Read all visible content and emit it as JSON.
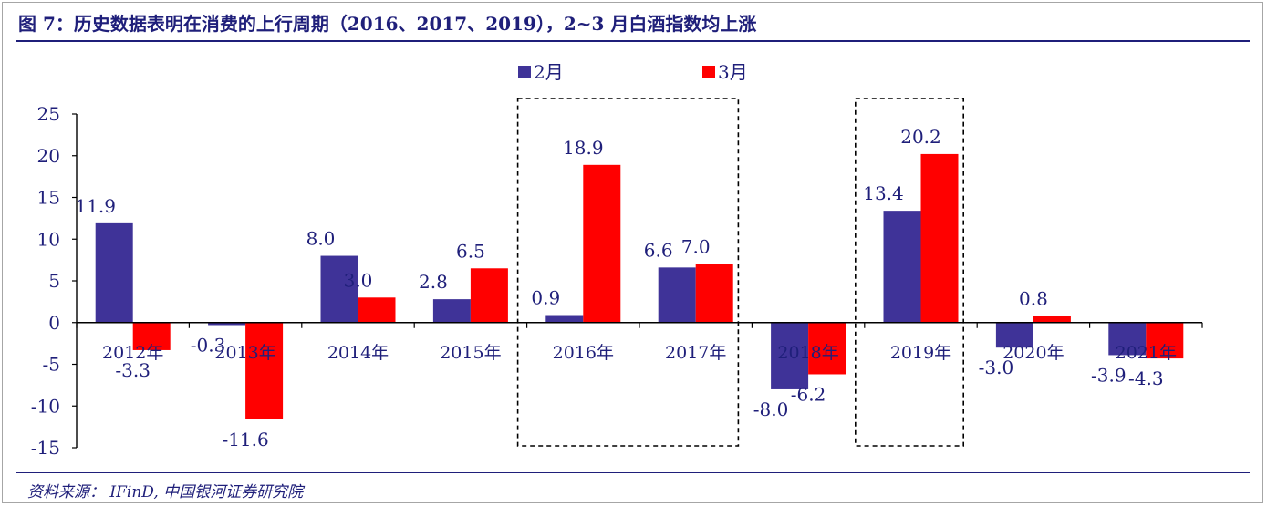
{
  "header": {
    "title": "图 7：历史数据表明在消费的上行周期（2016、2017、2019），2~3 月白酒指数均上涨"
  },
  "footer": {
    "source": "资料来源： IFinD, 中国银河证券研究院"
  },
  "chart_data": {
    "type": "bar",
    "categories": [
      "2012年",
      "2013年",
      "2014年",
      "2015年",
      "2016年",
      "2017年",
      "2018年",
      "2019年",
      "2020年",
      "2021年"
    ],
    "series": [
      {
        "name": "2月",
        "color": "#3f3398",
        "values": [
          11.9,
          -0.3,
          8.0,
          2.8,
          0.9,
          6.6,
          -8.0,
          13.4,
          -3.0,
          -3.9
        ]
      },
      {
        "name": "3月",
        "color": "#ff0000",
        "values": [
          -3.3,
          -11.6,
          3.0,
          6.5,
          18.9,
          7.0,
          -6.2,
          20.2,
          0.8,
          -4.3
        ]
      }
    ],
    "value_labels": [
      [
        "11.9",
        "-0.3",
        "8.0",
        "2.8",
        "0.9",
        "6.6",
        "-8.0",
        "13.4",
        "-3.0",
        "-3.9"
      ],
      [
        "-3.3",
        "-11.6",
        "3.0",
        "6.5",
        "18.9",
        "7.0",
        "-6.2",
        "20.2",
        "0.8",
        "-4.3"
      ]
    ],
    "ylim": [
      -15,
      25
    ],
    "yticks": [
      -15,
      -10,
      -5,
      0,
      5,
      10,
      15,
      20,
      25
    ],
    "ytick_labels": [
      "-15",
      "-10",
      "-5",
      "0",
      "5",
      "10",
      "15",
      "20",
      "25"
    ],
    "legend_position": "top-center",
    "highlight_categories": [
      [
        "2016年",
        "2017年"
      ],
      [
        "2019年"
      ]
    ],
    "grid": false
  }
}
